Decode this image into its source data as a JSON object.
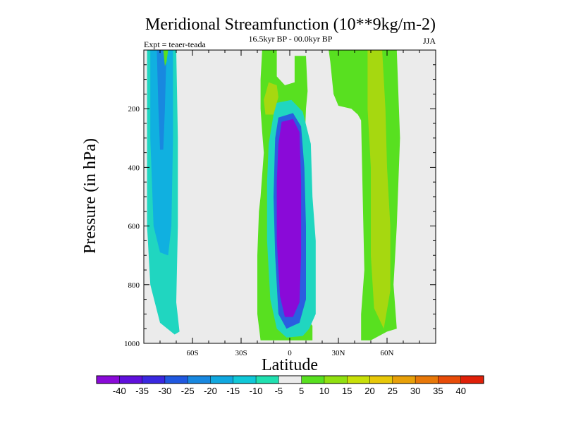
{
  "chart_data": {
    "type": "contour",
    "title": "Meridional Streamfunction (10**9kg/m-2)",
    "subtitle": "16.5kyr BP - 00.0kyr BP",
    "left_label": "Expt = teaer-teada",
    "right_label": "JJA",
    "xlabel": "Latitude",
    "ylabel": "Pressure (in hPa)",
    "xlim": [
      -90,
      90
    ],
    "ylim": [
      0,
      1000
    ],
    "y_inverted": true,
    "x_ticks": [
      {
        "value": -60,
        "label": "60S"
      },
      {
        "value": -30,
        "label": "30S"
      },
      {
        "value": 0,
        "label": "0"
      },
      {
        "value": 30,
        "label": "30N"
      },
      {
        "value": 60,
        "label": "60N"
      }
    ],
    "y_ticks": [
      {
        "value": 200,
        "label": "200"
      },
      {
        "value": 400,
        "label": "400"
      },
      {
        "value": 600,
        "label": "600"
      },
      {
        "value": 800,
        "label": "800"
      },
      {
        "value": 1000,
        "label": "1000"
      }
    ],
    "colorbar": {
      "labels": [
        "-40",
        "-35",
        "-30",
        "-25",
        "-20",
        "-15",
        "-10",
        "-5",
        "5",
        "10",
        "15",
        "20",
        "25",
        "30",
        "35",
        "40"
      ],
      "colors": [
        "#8a0ad8",
        "#6010dc",
        "#3a28e0",
        "#2058e0",
        "#1888e0",
        "#10a8e0",
        "#10c8d8",
        "#20e0b0",
        "#ebebeb",
        "#58e020",
        "#90e010",
        "#c8e008",
        "#e8c808",
        "#e8a008",
        "#e87808",
        "#e84c08",
        "#e02008"
      ]
    },
    "regions": [
      {
        "name": "southern-cyan-band",
        "level": "-10",
        "fill": "#20d6c0",
        "points": [
          [
            -88,
            0
          ],
          [
            -70,
            0
          ],
          [
            -69,
            300
          ],
          [
            -69,
            600
          ],
          [
            -70,
            860
          ],
          [
            -68,
            960
          ],
          [
            -71,
            970
          ],
          [
            -80,
            930
          ],
          [
            -86,
            800
          ],
          [
            -88,
            600
          ]
        ]
      },
      {
        "name": "southern-light-blue-band",
        "level": "-15",
        "fill": "#10b0e0",
        "points": [
          [
            -86,
            0
          ],
          [
            -72,
            0
          ],
          [
            -72,
            300
          ],
          [
            -73,
            600
          ],
          [
            -75,
            700
          ],
          [
            -80,
            690
          ],
          [
            -84,
            600
          ],
          [
            -86,
            300
          ]
        ]
      },
      {
        "name": "southern-blue-core",
        "level": "-20",
        "fill": "#1888e0",
        "points": [
          [
            -82,
            0
          ],
          [
            -76,
            0
          ],
          [
            -77,
            200
          ],
          [
            -78,
            340
          ],
          [
            -80,
            340
          ],
          [
            -81,
            200
          ]
        ]
      },
      {
        "name": "equatorial-green-column",
        "level": "5",
        "fill": "#58e020",
        "points": [
          [
            -17,
            0
          ],
          [
            -8,
            0
          ],
          [
            -8,
            90
          ],
          [
            -3,
            120
          ],
          [
            3,
            110
          ],
          [
            3,
            20
          ],
          [
            10,
            20
          ],
          [
            11,
            140
          ],
          [
            10,
            200
          ],
          [
            8,
            500
          ],
          [
            8,
            900
          ],
          [
            14,
            940
          ],
          [
            14,
            990
          ],
          [
            -18,
            990
          ],
          [
            -20,
            900
          ],
          [
            -20,
            700
          ],
          [
            -19,
            550
          ],
          [
            -18,
            500
          ],
          [
            -16,
            350
          ],
          [
            -17,
            280
          ],
          [
            -18,
            200
          ],
          [
            -18,
            100
          ]
        ]
      },
      {
        "name": "equatorial-yellow-green-patch",
        "level": "10",
        "fill": "#a6d810",
        "points": [
          [
            -13,
            110
          ],
          [
            -8,
            120
          ],
          [
            -7,
            160
          ],
          [
            -10,
            220
          ],
          [
            -15,
            220
          ],
          [
            -16,
            170
          ]
        ]
      },
      {
        "name": "equatorial-cyan-ring",
        "level": "-10",
        "fill": "#20d6c0",
        "points": [
          [
            -8,
            180
          ],
          [
            1,
            170
          ],
          [
            8,
            210
          ],
          [
            13,
            320
          ],
          [
            14,
            500
          ],
          [
            16,
            650
          ],
          [
            16,
            900
          ],
          [
            12,
            950
          ],
          [
            8,
            975
          ],
          [
            -2,
            980
          ],
          [
            -8,
            950
          ],
          [
            -12,
            850
          ],
          [
            -14,
            650
          ],
          [
            -14,
            450
          ],
          [
            -13,
            320
          ],
          [
            -10,
            220
          ]
        ]
      },
      {
        "name": "equatorial-blue-ring",
        "level": "-25",
        "fill": "#2a5ee0",
        "points": [
          [
            -7,
            230
          ],
          [
            2,
            215
          ],
          [
            7,
            260
          ],
          [
            9,
            400
          ],
          [
            10,
            600
          ],
          [
            10,
            850
          ],
          [
            6,
            930
          ],
          [
            -2,
            950
          ],
          [
            -7,
            900
          ],
          [
            -9,
            700
          ],
          [
            -10,
            500
          ],
          [
            -9,
            300
          ]
        ]
      },
      {
        "name": "equatorial-purple-core",
        "level": "-40",
        "fill": "#8a0ad8",
        "points": [
          [
            -5,
            245
          ],
          [
            2,
            235
          ],
          [
            6,
            280
          ],
          [
            7,
            450
          ],
          [
            7,
            700
          ],
          [
            6,
            860
          ],
          [
            2,
            910
          ],
          [
            -3,
            910
          ],
          [
            -6,
            840
          ],
          [
            -8,
            650
          ],
          [
            -8,
            450
          ],
          [
            -7,
            320
          ]
        ]
      },
      {
        "name": "northern-green-band",
        "level": "5",
        "fill": "#58e020",
        "points": [
          [
            24,
            0
          ],
          [
            38,
            0
          ],
          [
            42,
            0
          ],
          [
            66,
            0
          ],
          [
            68,
            300
          ],
          [
            66,
            600
          ],
          [
            64,
            800
          ],
          [
            66,
            950
          ],
          [
            60,
            960
          ],
          [
            50,
            990
          ],
          [
            44,
            990
          ],
          [
            44,
            900
          ],
          [
            46,
            750
          ],
          [
            45,
            500
          ],
          [
            44,
            240
          ],
          [
            42,
            220
          ],
          [
            38,
            200
          ],
          [
            30,
            190
          ],
          [
            27,
            150
          ],
          [
            25,
            40
          ]
        ]
      },
      {
        "name": "northern-yellow-green-band",
        "level": "10",
        "fill": "#a6d810",
        "points": [
          [
            48,
            0
          ],
          [
            57,
            0
          ],
          [
            59,
            200
          ],
          [
            60,
            400
          ],
          [
            62,
            600
          ],
          [
            62,
            820
          ],
          [
            58,
            950
          ],
          [
            52,
            880
          ],
          [
            50,
            700
          ],
          [
            50,
            400
          ],
          [
            48,
            200
          ]
        ]
      },
      {
        "name": "northern-green-cap",
        "level": "5",
        "fill": "#58e020",
        "points": [
          [
            -78,
            0
          ],
          [
            -75,
            0
          ],
          [
            -76,
            40
          ],
          [
            -77,
            55
          ]
        ]
      }
    ]
  }
}
